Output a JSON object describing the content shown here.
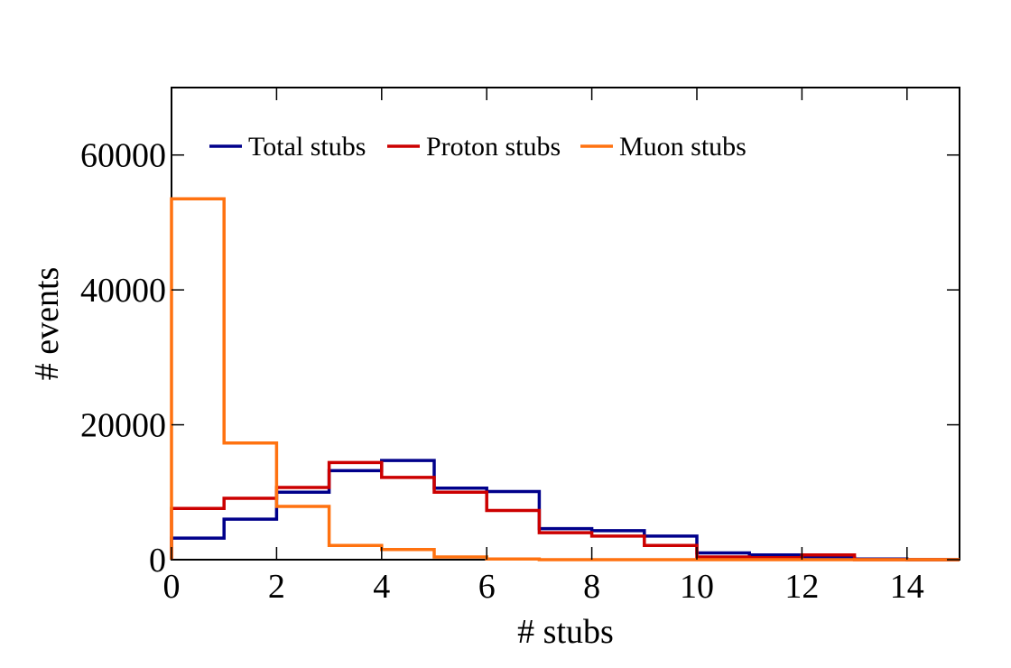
{
  "chart_data": {
    "type": "histogram",
    "title": "",
    "xlabel": "# stubs",
    "ylabel": "# events",
    "xlim": [
      0,
      15
    ],
    "ylim": [
      0,
      70000
    ],
    "xticks": [
      "0",
      "2",
      "4",
      "6",
      "8",
      "10",
      "12",
      "14"
    ],
    "yticks": [
      "0",
      "20000",
      "40000",
      "60000"
    ],
    "bin_edges": [
      0,
      1,
      2,
      3,
      4,
      5,
      6,
      7,
      8,
      9,
      10,
      11,
      12,
      13,
      14,
      15
    ],
    "grid": false,
    "legend_position": "top",
    "series": [
      {
        "name": "Total stubs",
        "color": "#00008b",
        "values": [
          3200,
          6000,
          10000,
          13200,
          14700,
          10600,
          10100,
          4600,
          4300,
          3500,
          1000,
          700,
          300,
          100,
          0
        ]
      },
      {
        "name": "Proton stubs",
        "color": "#cc0000",
        "values": [
          7600,
          9100,
          10700,
          14400,
          12200,
          10000,
          7300,
          4000,
          3500,
          2100,
          400,
          300,
          700,
          0,
          0
        ]
      },
      {
        "name": "Muon stubs",
        "color": "#ff7210",
        "values": [
          53500,
          17300,
          7900,
          2100,
          1500,
          400,
          100,
          0,
          0,
          0,
          0,
          0,
          0,
          0,
          0
        ]
      }
    ]
  }
}
